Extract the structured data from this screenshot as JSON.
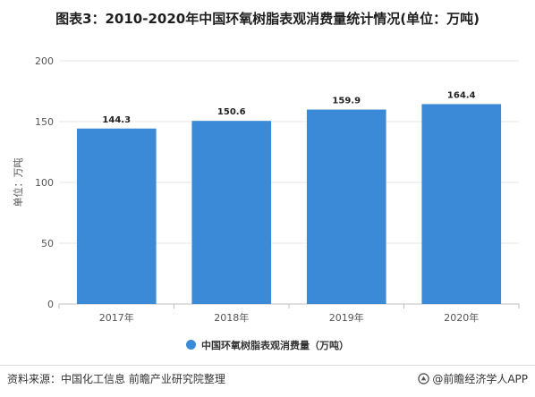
{
  "title": "图表3：2010-2020年中国环氧树脂表观消费量统计情况(单位：万吨)",
  "source_text": "资料来源：中国化工信息 前瞻产业研究院整理",
  "brand_text": "@前瞻经济学人APP",
  "colors": {
    "bar": "#3a8ad8",
    "axis": "#bfbfbf",
    "grid": "#e5e5e5"
  },
  "chart_data": {
    "type": "bar",
    "categories": [
      "2017年",
      "2018年",
      "2019年",
      "2020年"
    ],
    "series": [
      {
        "name": "中国环氧树脂表观消费量（万吨）",
        "values": [
          144.3,
          150.6,
          159.9,
          164.4
        ]
      }
    ],
    "value_labels": [
      "144.3",
      "150.6",
      "159.9",
      "164.4"
    ],
    "ylabel": "单位：万吨",
    "ylim": [
      0,
      200
    ],
    "yticks": [
      0,
      50,
      100,
      150,
      200
    ],
    "grid": true,
    "legend_position": "bottom"
  }
}
